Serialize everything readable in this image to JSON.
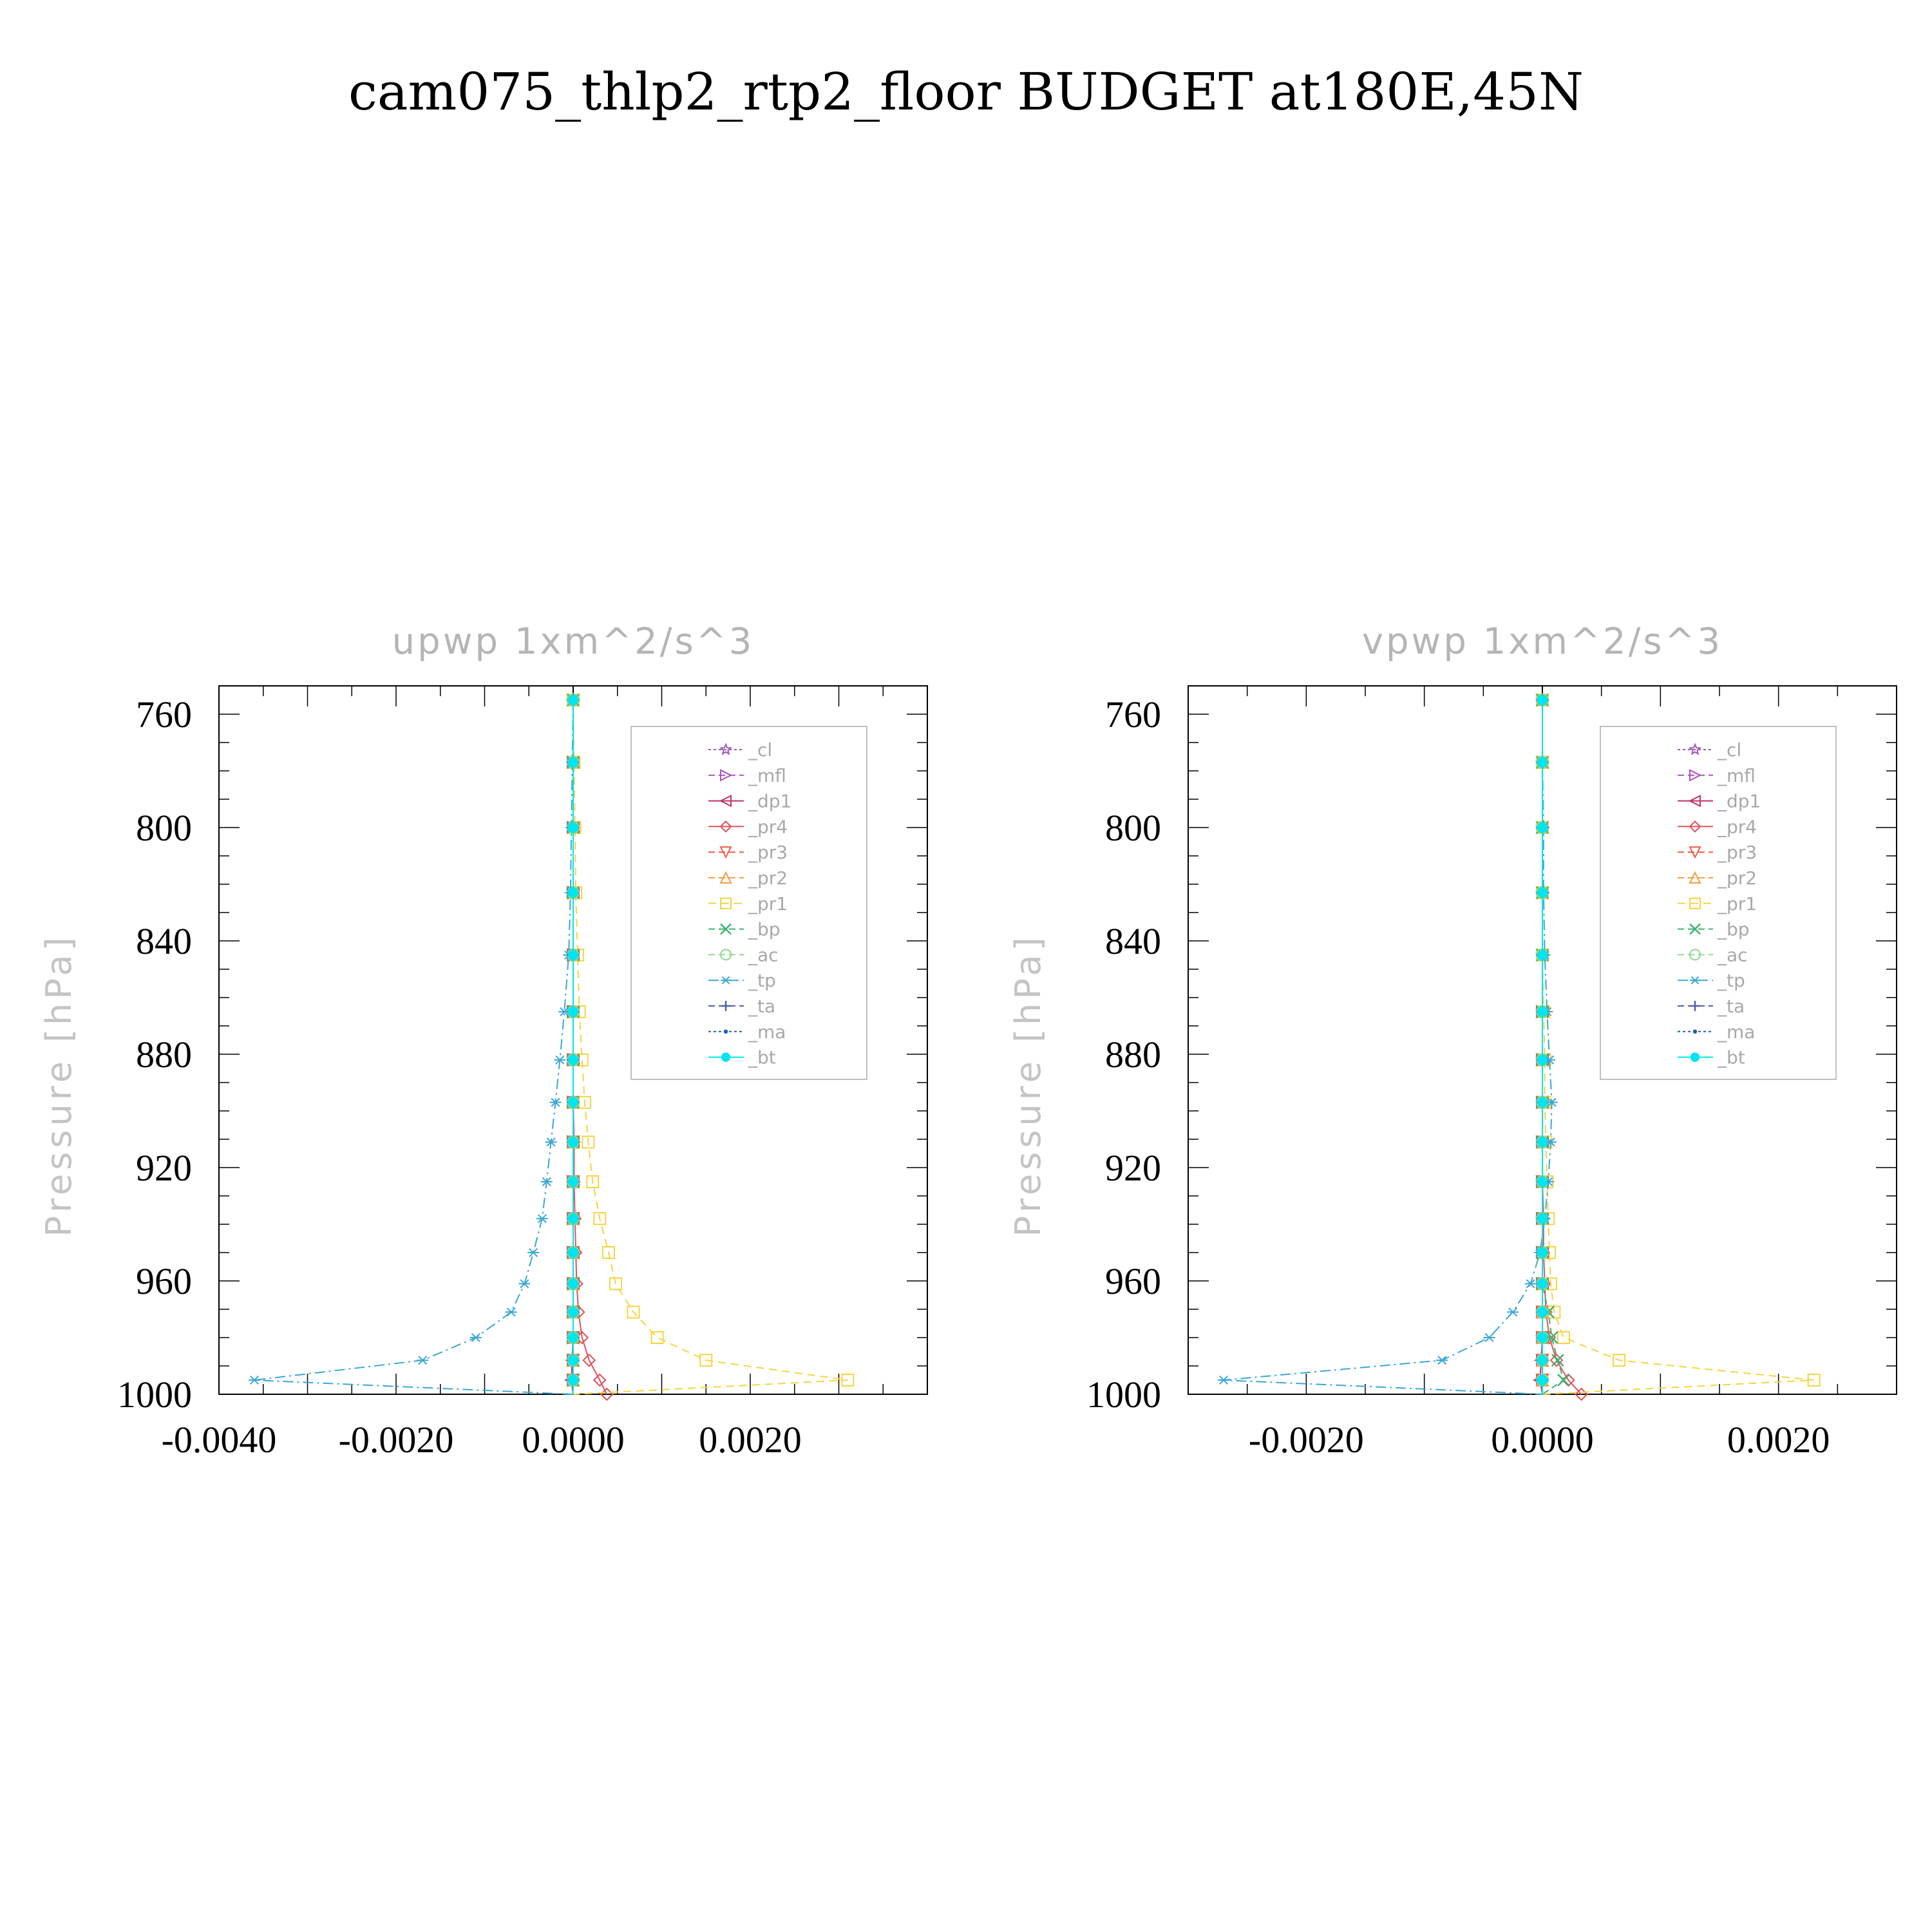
{
  "figure_title": "cam075_thlp2_rtp2_floor  BUDGET at180E,45N",
  "chart_data": [
    {
      "type": "line",
      "title": "upwp    1xm^2/s^3",
      "ylabel": "Pressure  [hPa]",
      "xlim": [
        -0.004,
        0.004
      ],
      "ylim": [
        1000,
        750
      ],
      "x_ticks": [
        "-0.0040",
        "-0.0020",
        "0.0000",
        "0.0020"
      ],
      "x_tick_values": [
        -0.004,
        -0.002,
        0.0,
        0.002
      ],
      "y_ticks": [
        "760",
        "800",
        "840",
        "880",
        "920",
        "960",
        "1000"
      ],
      "y_tick_values": [
        760,
        800,
        840,
        880,
        920,
        960,
        1000
      ],
      "legend_position": "top-right",
      "levels": [
        755,
        777,
        800,
        823,
        845,
        865,
        882,
        897,
        911,
        925,
        938,
        950,
        961,
        971,
        980,
        988,
        995,
        1000
      ],
      "series": [
        {
          "name": "_cl",
          "color": "#9b59b6",
          "marker": "star",
          "dash": "4 4",
          "values": [
            0,
            0,
            0,
            0,
            0,
            0,
            0,
            0,
            0,
            0,
            0,
            0,
            0,
            0,
            0,
            0,
            0,
            0
          ]
        },
        {
          "name": "_mfl",
          "color": "#b050c0",
          "marker": "triangle-right",
          "dash": "10 6",
          "values": [
            0,
            0,
            0,
            0,
            0,
            0,
            0,
            0,
            0,
            0,
            0,
            0,
            0,
            0,
            0,
            0,
            0,
            0
          ]
        },
        {
          "name": "_dp1",
          "color": "#c0306a",
          "marker": "triangle-left",
          "dash": "",
          "values": [
            0,
            0,
            0,
            0,
            0,
            0,
            0,
            0,
            0,
            0,
            0,
            0,
            0,
            0,
            0,
            -1e-05,
            -2e-05,
            0
          ]
        },
        {
          "name": "_pr4",
          "color": "#e0505a",
          "marker": "diamond",
          "dash": "",
          "values": [
            0,
            0,
            0,
            0,
            0,
            0,
            0,
            0,
            1e-05,
            1e-05,
            2e-05,
            3e-05,
            4e-05,
            6e-05,
            0.0001,
            0.00018,
            0.0003,
            0.00038
          ]
        },
        {
          "name": "_pr3",
          "color": "#ef5d4a",
          "marker": "triangle-down",
          "dash": "10 6",
          "values": [
            0,
            0,
            0,
            0,
            0,
            0,
            0,
            0,
            0,
            0,
            0,
            0,
            0,
            0,
            0,
            0,
            0,
            0
          ]
        },
        {
          "name": "_pr2",
          "color": "#f0a040",
          "marker": "triangle-up",
          "dash": "10 6",
          "values": [
            0,
            0,
            0,
            0,
            0,
            0,
            0,
            0,
            0,
            0,
            0,
            0,
            0,
            0,
            0,
            0,
            0,
            0
          ]
        },
        {
          "name": "_pr1",
          "color": "#f5d442",
          "marker": "square",
          "dash": "12 8",
          "values": [
            0,
            1e-05,
            2e-05,
            3e-05,
            5e-05,
            7e-05,
            0.0001,
            0.00013,
            0.00017,
            0.00022,
            0.0003,
            0.0004,
            0.00048,
            0.00068,
            0.00095,
            0.0015,
            0.0031,
            0
          ]
        },
        {
          "name": "_bp",
          "color": "#3cb371",
          "marker": "x",
          "dash": "10 6",
          "values": [
            0,
            0,
            0,
            0,
            0,
            0,
            0,
            0,
            0,
            0,
            0,
            0,
            0,
            0,
            0,
            0,
            0,
            0
          ]
        },
        {
          "name": "_ac",
          "color": "#90d890",
          "marker": "circle-open",
          "dash": "10 6",
          "values": [
            0,
            0,
            0,
            0,
            0,
            0,
            0,
            0,
            0,
            0,
            0,
            0,
            0,
            0,
            0,
            0,
            0,
            0
          ]
        },
        {
          "name": "_tp",
          "color": "#3aa7d6",
          "marker": "asterisk",
          "dash": "16 6 3 6",
          "values": [
            0,
            -1e-05,
            -2e-05,
            -3e-05,
            -5e-05,
            -0.0001,
            -0.00015,
            -0.0002,
            -0.00025,
            -0.0003,
            -0.00035,
            -0.00045,
            -0.00055,
            -0.0007,
            -0.0011,
            -0.0017,
            -0.0036,
            0
          ]
        },
        {
          "name": "_ta",
          "color": "#5060a0",
          "marker": "plus",
          "dash": "10 6",
          "values": [
            0,
            0,
            0,
            0,
            0,
            0,
            0,
            0,
            0,
            0,
            0,
            0,
            0,
            0,
            0,
            0,
            0,
            0
          ]
        },
        {
          "name": "_ma",
          "color": "#1e5eb0",
          "marker": "dot",
          "dash": "4 4",
          "values": [
            0,
            0,
            0,
            0,
            0,
            0,
            0,
            0,
            0,
            0,
            0,
            0,
            0,
            0,
            0,
            0,
            0,
            0
          ]
        },
        {
          "name": "_bt",
          "color": "#00e5ee",
          "marker": "filled-circle",
          "dash": "",
          "values": [
            0,
            0,
            0,
            0,
            0,
            0,
            0,
            0,
            0,
            0,
            0,
            0,
            0,
            0,
            0,
            0,
            0,
            0
          ]
        }
      ]
    },
    {
      "type": "line",
      "title": "vpwp    1xm^2/s^3",
      "ylabel": "Pressure  [hPa]",
      "xlim": [
        -0.003,
        0.003
      ],
      "ylim": [
        1000,
        750
      ],
      "x_ticks": [
        "-0.0020",
        "0.0000",
        "0.0020"
      ],
      "x_tick_values": [
        -0.002,
        0.0,
        0.002
      ],
      "y_ticks": [
        "760",
        "800",
        "840",
        "880",
        "920",
        "960",
        "1000"
      ],
      "y_tick_values": [
        760,
        800,
        840,
        880,
        920,
        960,
        1000
      ],
      "legend_position": "top-right",
      "levels": [
        755,
        777,
        800,
        823,
        845,
        865,
        882,
        897,
        911,
        925,
        938,
        950,
        961,
        971,
        980,
        988,
        995,
        1000
      ],
      "series": [
        {
          "name": "_cl",
          "color": "#9b59b6",
          "marker": "star",
          "dash": "4 4",
          "values": [
            0,
            0,
            0,
            0,
            0,
            0,
            0,
            0,
            0,
            0,
            0,
            0,
            0,
            0,
            0,
            0,
            0,
            0
          ]
        },
        {
          "name": "_mfl",
          "color": "#b050c0",
          "marker": "triangle-right",
          "dash": "10 6",
          "values": [
            0,
            0,
            0,
            0,
            0,
            0,
            0,
            0,
            0,
            0,
            0,
            0,
            0,
            0,
            0,
            0,
            0,
            0
          ]
        },
        {
          "name": "_dp1",
          "color": "#c0306a",
          "marker": "triangle-left",
          "dash": "",
          "values": [
            0,
            0,
            0,
            0,
            0,
            0,
            0,
            0,
            0,
            0,
            0,
            0,
            0,
            0,
            0,
            -1e-05,
            -2e-05,
            0
          ]
        },
        {
          "name": "_pr4",
          "color": "#e0505a",
          "marker": "diamond",
          "dash": "",
          "values": [
            0,
            0,
            0,
            0,
            0,
            0,
            0,
            0,
            0,
            0,
            1e-05,
            1e-05,
            2e-05,
            3e-05,
            6e-05,
            0.00012,
            0.00022,
            0.00033
          ]
        },
        {
          "name": "_pr3",
          "color": "#ef5d4a",
          "marker": "triangle-down",
          "dash": "10 6",
          "values": [
            0,
            0,
            0,
            0,
            0,
            0,
            0,
            0,
            0,
            0,
            0,
            0,
            0,
            0,
            0,
            0,
            0,
            0
          ]
        },
        {
          "name": "_pr2",
          "color": "#f0a040",
          "marker": "triangle-up",
          "dash": "10 6",
          "values": [
            0,
            0,
            0,
            0,
            0,
            0,
            0,
            0,
            0,
            0,
            0,
            0,
            0,
            0,
            0,
            0,
            0,
            0
          ]
        },
        {
          "name": "_pr1",
          "color": "#f5d442",
          "marker": "square",
          "dash": "12 8",
          "values": [
            0,
            0,
            0,
            0,
            0,
            1e-05,
            2e-05,
            2e-05,
            3e-05,
            4e-05,
            5e-05,
            6e-05,
            7e-05,
            0.0001,
            0.00018,
            0.00065,
            0.0023,
            0
          ]
        },
        {
          "name": "_bp",
          "color": "#3cb371",
          "marker": "x",
          "dash": "10 6",
          "values": [
            0,
            0,
            0,
            0,
            0,
            0,
            0,
            0,
            0,
            0,
            0,
            0,
            0,
            5e-05,
            8e-05,
            0.00013,
            0.00018,
            0
          ]
        },
        {
          "name": "_ac",
          "color": "#90d890",
          "marker": "circle-open",
          "dash": "10 6",
          "values": [
            0,
            0,
            0,
            0,
            0,
            0,
            0,
            0,
            0,
            0,
            0,
            0,
            0,
            0,
            0,
            0,
            0,
            0
          ]
        },
        {
          "name": "_tp",
          "color": "#3aa7d6",
          "marker": "asterisk",
          "dash": "16 6 3 6",
          "values": [
            0,
            0,
            1e-05,
            1e-05,
            2e-05,
            4e-05,
            6e-05,
            8e-05,
            7e-05,
            5e-05,
            2e-05,
            -2e-05,
            -0.0001,
            -0.00025,
            -0.00045,
            -0.00085,
            -0.0027,
            0
          ]
        },
        {
          "name": "_ta",
          "color": "#5060a0",
          "marker": "plus",
          "dash": "10 6",
          "values": [
            0,
            0,
            0,
            0,
            0,
            0,
            0,
            0,
            0,
            0,
            0,
            0,
            0,
            0,
            0,
            0,
            0,
            0
          ]
        },
        {
          "name": "_ma",
          "color": "#1e5eb0",
          "marker": "dot",
          "dash": "4 4",
          "values": [
            0,
            0,
            0,
            0,
            0,
            0,
            0,
            0,
            0,
            0,
            0,
            0,
            0,
            0,
            0,
            0,
            0,
            0
          ]
        },
        {
          "name": "_bt",
          "color": "#00e5ee",
          "marker": "filled-circle",
          "dash": "",
          "values": [
            0,
            0,
            0,
            0,
            0,
            0,
            0,
            0,
            0,
            0,
            0,
            0,
            0,
            0,
            0,
            0,
            0,
            0
          ]
        }
      ]
    }
  ]
}
